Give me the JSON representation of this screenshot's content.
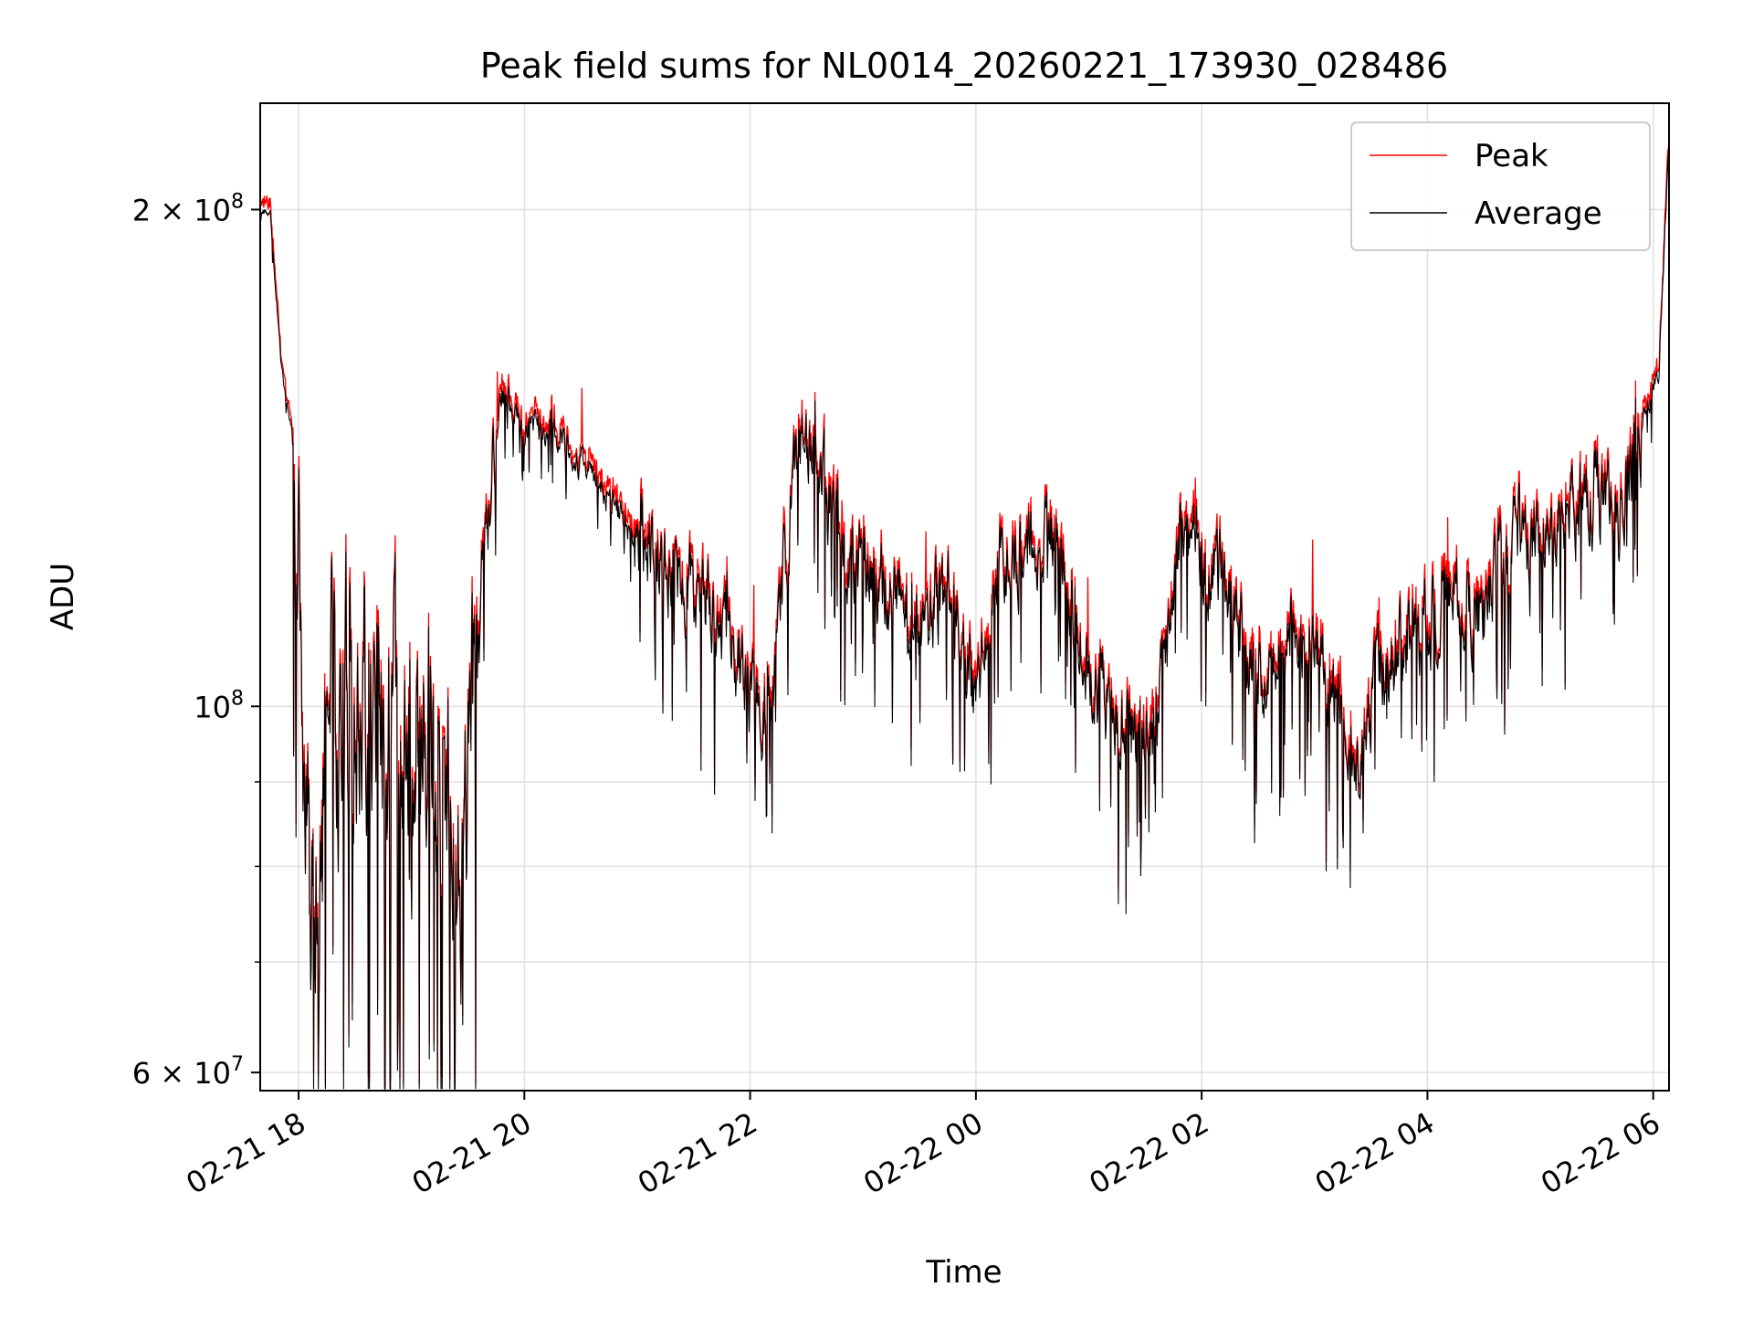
{
  "chart_data": {
    "type": "line",
    "title": "Peak field sums for NL0014_20260221_173930_028486",
    "xlabel": "Time",
    "ylabel": "ADU",
    "yscale": "log",
    "ylim": [
      58500000,
      232000000
    ],
    "xlim_hours": [
      17.66,
      30.14
    ],
    "grid": true,
    "legend_position": "top-right",
    "x_ticks": [
      {
        "hours": 18,
        "label": "02-21 18"
      },
      {
        "hours": 20,
        "label": "02-21 20"
      },
      {
        "hours": 22,
        "label": "02-21 22"
      },
      {
        "hours": 24,
        "label": "02-22 00"
      },
      {
        "hours": 26,
        "label": "02-22 02"
      },
      {
        "hours": 28,
        "label": "02-22 04"
      },
      {
        "hours": 30,
        "label": "02-22 06"
      }
    ],
    "y_major_ticks": [
      {
        "value": 60000000,
        "mantissa": "6",
        "base": "10",
        "exp": "7"
      },
      {
        "value": 100000000,
        "mantissa": "",
        "base": "10",
        "exp": "8"
      },
      {
        "value": 200000000,
        "mantissa": "2",
        "base": "10",
        "exp": "8"
      }
    ],
    "y_minor_ticks": [
      70000000,
      80000000,
      90000000
    ],
    "series": [
      {
        "name": "Peak",
        "color": "#ff0000"
      },
      {
        "name": "Average",
        "color": "#000000"
      }
    ],
    "average_anchor_hours": [
      17.66,
      17.75,
      17.85,
      17.95,
      18.0,
      18.1,
      18.2,
      18.3,
      18.5,
      18.7,
      18.9,
      19.1,
      19.3,
      19.4,
      19.5,
      19.6,
      19.7,
      19.8,
      20.0,
      20.2,
      20.4,
      20.6,
      20.8,
      21.0,
      21.4,
      21.8,
      22.0,
      22.2,
      22.4,
      22.6,
      22.8,
      23.1,
      23.5,
      23.8,
      24.0,
      24.2,
      24.5,
      24.7,
      25.0,
      25.2,
      25.4,
      25.6,
      25.8,
      26.0,
      26.2,
      26.5,
      26.8,
      27.0,
      27.2,
      27.4,
      27.6,
      27.9,
      28.2,
      28.5,
      28.8,
      29.0,
      29.2,
      29.5,
      29.7,
      29.9,
      30.05,
      30.14
    ],
    "average_anchor_values": [
      200000000,
      198000000,
      160000000,
      145000000,
      120000000,
      80000000,
      86000000,
      100000000,
      104000000,
      96000000,
      92000000,
      96000000,
      86000000,
      76000000,
      90000000,
      120000000,
      133000000,
      155000000,
      147000000,
      147000000,
      143000000,
      138000000,
      132000000,
      127000000,
      120000000,
      112000000,
      100000000,
      102000000,
      143000000,
      142000000,
      124000000,
      120000000,
      111000000,
      118000000,
      100000000,
      122000000,
      123000000,
      130000000,
      104000000,
      100000000,
      96000000,
      98000000,
      128000000,
      124000000,
      117000000,
      104000000,
      110000000,
      108000000,
      102000000,
      93000000,
      106000000,
      110000000,
      117000000,
      114000000,
      128000000,
      126000000,
      129000000,
      136000000,
      130000000,
      148000000,
      160000000,
      220000000
    ],
    "peak_spike_count": 18
  }
}
